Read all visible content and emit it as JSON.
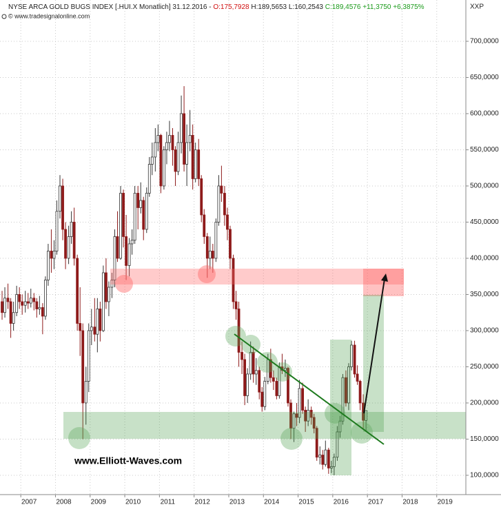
{
  "chart_data": {
    "type": "candlestick",
    "title": "NYSE ARCA GOLD BUGS INDEX [.HUI.X  Monatlich] 31.12.2016 - ",
    "header_open": "O:175,7928 ",
    "header_high": "H:189,5653 ",
    "header_low": "L:160,2543 ",
    "header_close": "C:189,4576 +11,3750 +6,3875%",
    "source": "© www.tradesignalonline.com",
    "symbol": "XXP",
    "annotation": "www.Elliott-Waves.com",
    "up_color": "#ffffff",
    "down_color": "#8e1b1b",
    "outline_color": "#333333",
    "grid": true,
    "xlim": [
      2006.4,
      2019.84
    ],
    "xticks": [
      2007,
      2008,
      2009,
      2010,
      2011,
      2012,
      2013,
      2014,
      2015,
      2016,
      2017,
      2018,
      2019
    ],
    "ylim": [
      73.3,
      757.1
    ],
    "yticks": [
      {
        "value": 100,
        "label": "100,0000"
      },
      {
        "value": 150,
        "label": "150,0000"
      },
      {
        "value": 200,
        "label": "200,0000"
      },
      {
        "value": 250,
        "label": "250,0000"
      },
      {
        "value": 300,
        "label": "300,0000"
      },
      {
        "value": 350,
        "label": "350,0000"
      },
      {
        "value": 400,
        "label": "400,0000"
      },
      {
        "value": 450,
        "label": "450,0000"
      },
      {
        "value": 500,
        "label": "500,0000"
      },
      {
        "value": 550,
        "label": "550,0000"
      },
      {
        "value": 600,
        "label": "600,0000"
      },
      {
        "value": 650,
        "label": "650,0000"
      },
      {
        "value": 700,
        "label": "700,0000"
      }
    ],
    "x": [
      2006.46,
      2006.54,
      2006.63,
      2006.71,
      2006.79,
      2006.88,
      2006.96,
      2007.04,
      2007.13,
      2007.21,
      2007.29,
      2007.38,
      2007.46,
      2007.54,
      2007.63,
      2007.71,
      2007.79,
      2007.88,
      2007.96,
      2008.04,
      2008.13,
      2008.21,
      2008.29,
      2008.38,
      2008.46,
      2008.54,
      2008.63,
      2008.71,
      2008.79,
      2008.88,
      2008.96,
      2009.04,
      2009.13,
      2009.21,
      2009.29,
      2009.38,
      2009.46,
      2009.54,
      2009.63,
      2009.71,
      2009.79,
      2009.88,
      2009.96,
      2010.04,
      2010.13,
      2010.21,
      2010.29,
      2010.38,
      2010.46,
      2010.54,
      2010.63,
      2010.71,
      2010.79,
      2010.88,
      2010.96,
      2011.04,
      2011.13,
      2011.21,
      2011.29,
      2011.38,
      2011.46,
      2011.54,
      2011.63,
      2011.71,
      2011.79,
      2011.88,
      2011.96,
      2012.04,
      2012.13,
      2012.21,
      2012.29,
      2012.38,
      2012.46,
      2012.54,
      2012.63,
      2012.71,
      2012.79,
      2012.88,
      2012.96,
      2013.04,
      2013.13,
      2013.21,
      2013.29,
      2013.38,
      2013.46,
      2013.54,
      2013.63,
      2013.71,
      2013.79,
      2013.88,
      2013.96,
      2014.04,
      2014.13,
      2014.21,
      2014.29,
      2014.38,
      2014.46,
      2014.54,
      2014.63,
      2014.71,
      2014.79,
      2014.88,
      2014.96,
      2015.04,
      2015.13,
      2015.21,
      2015.29,
      2015.38,
      2015.46,
      2015.54,
      2015.63,
      2015.71,
      2015.79,
      2015.88,
      2015.96,
      2016.04,
      2016.13,
      2016.21,
      2016.29,
      2016.38,
      2016.46,
      2016.54,
      2016.63,
      2016.71,
      2016.79,
      2016.88,
      2016.96
    ],
    "open": [
      340,
      325,
      345,
      340,
      310,
      325,
      350,
      340,
      335,
      340,
      338,
      345,
      340,
      330,
      332,
      320,
      370,
      410,
      400,
      410,
      465,
      500,
      440,
      400,
      430,
      450,
      400,
      310,
      300,
      200,
      230,
      300,
      305,
      295,
      330,
      300,
      380,
      340,
      360,
      370,
      430,
      400,
      490,
      430,
      390,
      420,
      425,
      490,
      470,
      480,
      440,
      490,
      530,
      540,
      560,
      570,
      500,
      550,
      560,
      570,
      550,
      520,
      560,
      600,
      530,
      560,
      570,
      510,
      550,
      510,
      460,
      430,
      400,
      410,
      400,
      450,
      500,
      490,
      460,
      440,
      400,
      340,
      330,
      270,
      260,
      210,
      240,
      270,
      240,
      245,
      215,
      195,
      230,
      260,
      235,
      230,
      210,
      250,
      245,
      248,
      200,
      165,
      185,
      180,
      220,
      190,
      175,
      190,
      180,
      165,
      125,
      128,
      115,
      135,
      110,
      112,
      125,
      160,
      175,
      235,
      200,
      250,
      280,
      240,
      230,
      200,
      175.7928
    ],
    "high": [
      355,
      360,
      365,
      345,
      340,
      362,
      360,
      350,
      355,
      352,
      358,
      352,
      345,
      348,
      338,
      375,
      420,
      440,
      425,
      480,
      515,
      510,
      450,
      445,
      465,
      470,
      405,
      360,
      310,
      250,
      310,
      330,
      345,
      345,
      340,
      390,
      400,
      368,
      380,
      440,
      465,
      500,
      495,
      460,
      428,
      440,
      500,
      500,
      505,
      485,
      498,
      540,
      560,
      580,
      585,
      572,
      555,
      575,
      590,
      580,
      555,
      575,
      625,
      638,
      585,
      605,
      585,
      560,
      565,
      515,
      468,
      435,
      430,
      420,
      455,
      515,
      528,
      500,
      470,
      445,
      405,
      355,
      340,
      285,
      268,
      248,
      285,
      278,
      262,
      250,
      222,
      236,
      268,
      275,
      245,
      235,
      256,
      268,
      260,
      250,
      205,
      188,
      200,
      232,
      228,
      195,
      205,
      195,
      185,
      168,
      140,
      135,
      148,
      138,
      120,
      130,
      168,
      182,
      240,
      245,
      255,
      286,
      286,
      252,
      232,
      212,
      189.5653
    ],
    "low": [
      315,
      318,
      330,
      290,
      300,
      320,
      330,
      322,
      325,
      330,
      332,
      328,
      318,
      322,
      295,
      315,
      362,
      380,
      385,
      405,
      455,
      425,
      385,
      392,
      420,
      390,
      300,
      265,
      150,
      170,
      215,
      280,
      285,
      270,
      285,
      298,
      330,
      320,
      345,
      360,
      395,
      398,
      415,
      370,
      375,
      405,
      420,
      440,
      462,
      425,
      435,
      485,
      515,
      520,
      548,
      490,
      495,
      530,
      548,
      528,
      500,
      515,
      545,
      520,
      500,
      548,
      495,
      505,
      500,
      450,
      420,
      373,
      385,
      380,
      395,
      445,
      478,
      445,
      425,
      385,
      330,
      315,
      250,
      240,
      197,
      200,
      232,
      228,
      225,
      205,
      188,
      190,
      226,
      228,
      218,
      205,
      206,
      240,
      236,
      195,
      150,
      146,
      168,
      172,
      185,
      160,
      168,
      170,
      158,
      120,
      115,
      108,
      112,
      102,
      103,
      100,
      120,
      152,
      170,
      195,
      190,
      245,
      235,
      225,
      190,
      165,
      160.2543
    ],
    "close": [
      325,
      345,
      340,
      310,
      325,
      350,
      340,
      335,
      340,
      338,
      345,
      340,
      330,
      332,
      320,
      370,
      410,
      400,
      410,
      465,
      500,
      440,
      400,
      430,
      450,
      400,
      310,
      300,
      200,
      230,
      300,
      305,
      295,
      330,
      300,
      380,
      340,
      360,
      370,
      430,
      400,
      490,
      430,
      390,
      420,
      425,
      490,
      470,
      480,
      440,
      490,
      530,
      540,
      560,
      570,
      500,
      550,
      560,
      570,
      550,
      520,
      560,
      600,
      530,
      560,
      570,
      510,
      550,
      510,
      460,
      430,
      400,
      410,
      400,
      450,
      500,
      490,
      460,
      440,
      400,
      340,
      330,
      270,
      260,
      210,
      240,
      270,
      240,
      245,
      215,
      195,
      230,
      260,
      235,
      230,
      210,
      250,
      245,
      248,
      200,
      165,
      185,
      180,
      220,
      190,
      175,
      190,
      180,
      165,
      125,
      128,
      115,
      135,
      110,
      112,
      125,
      160,
      175,
      235,
      200,
      250,
      280,
      240,
      230,
      200,
      176,
      189.4576
    ]
  }
}
